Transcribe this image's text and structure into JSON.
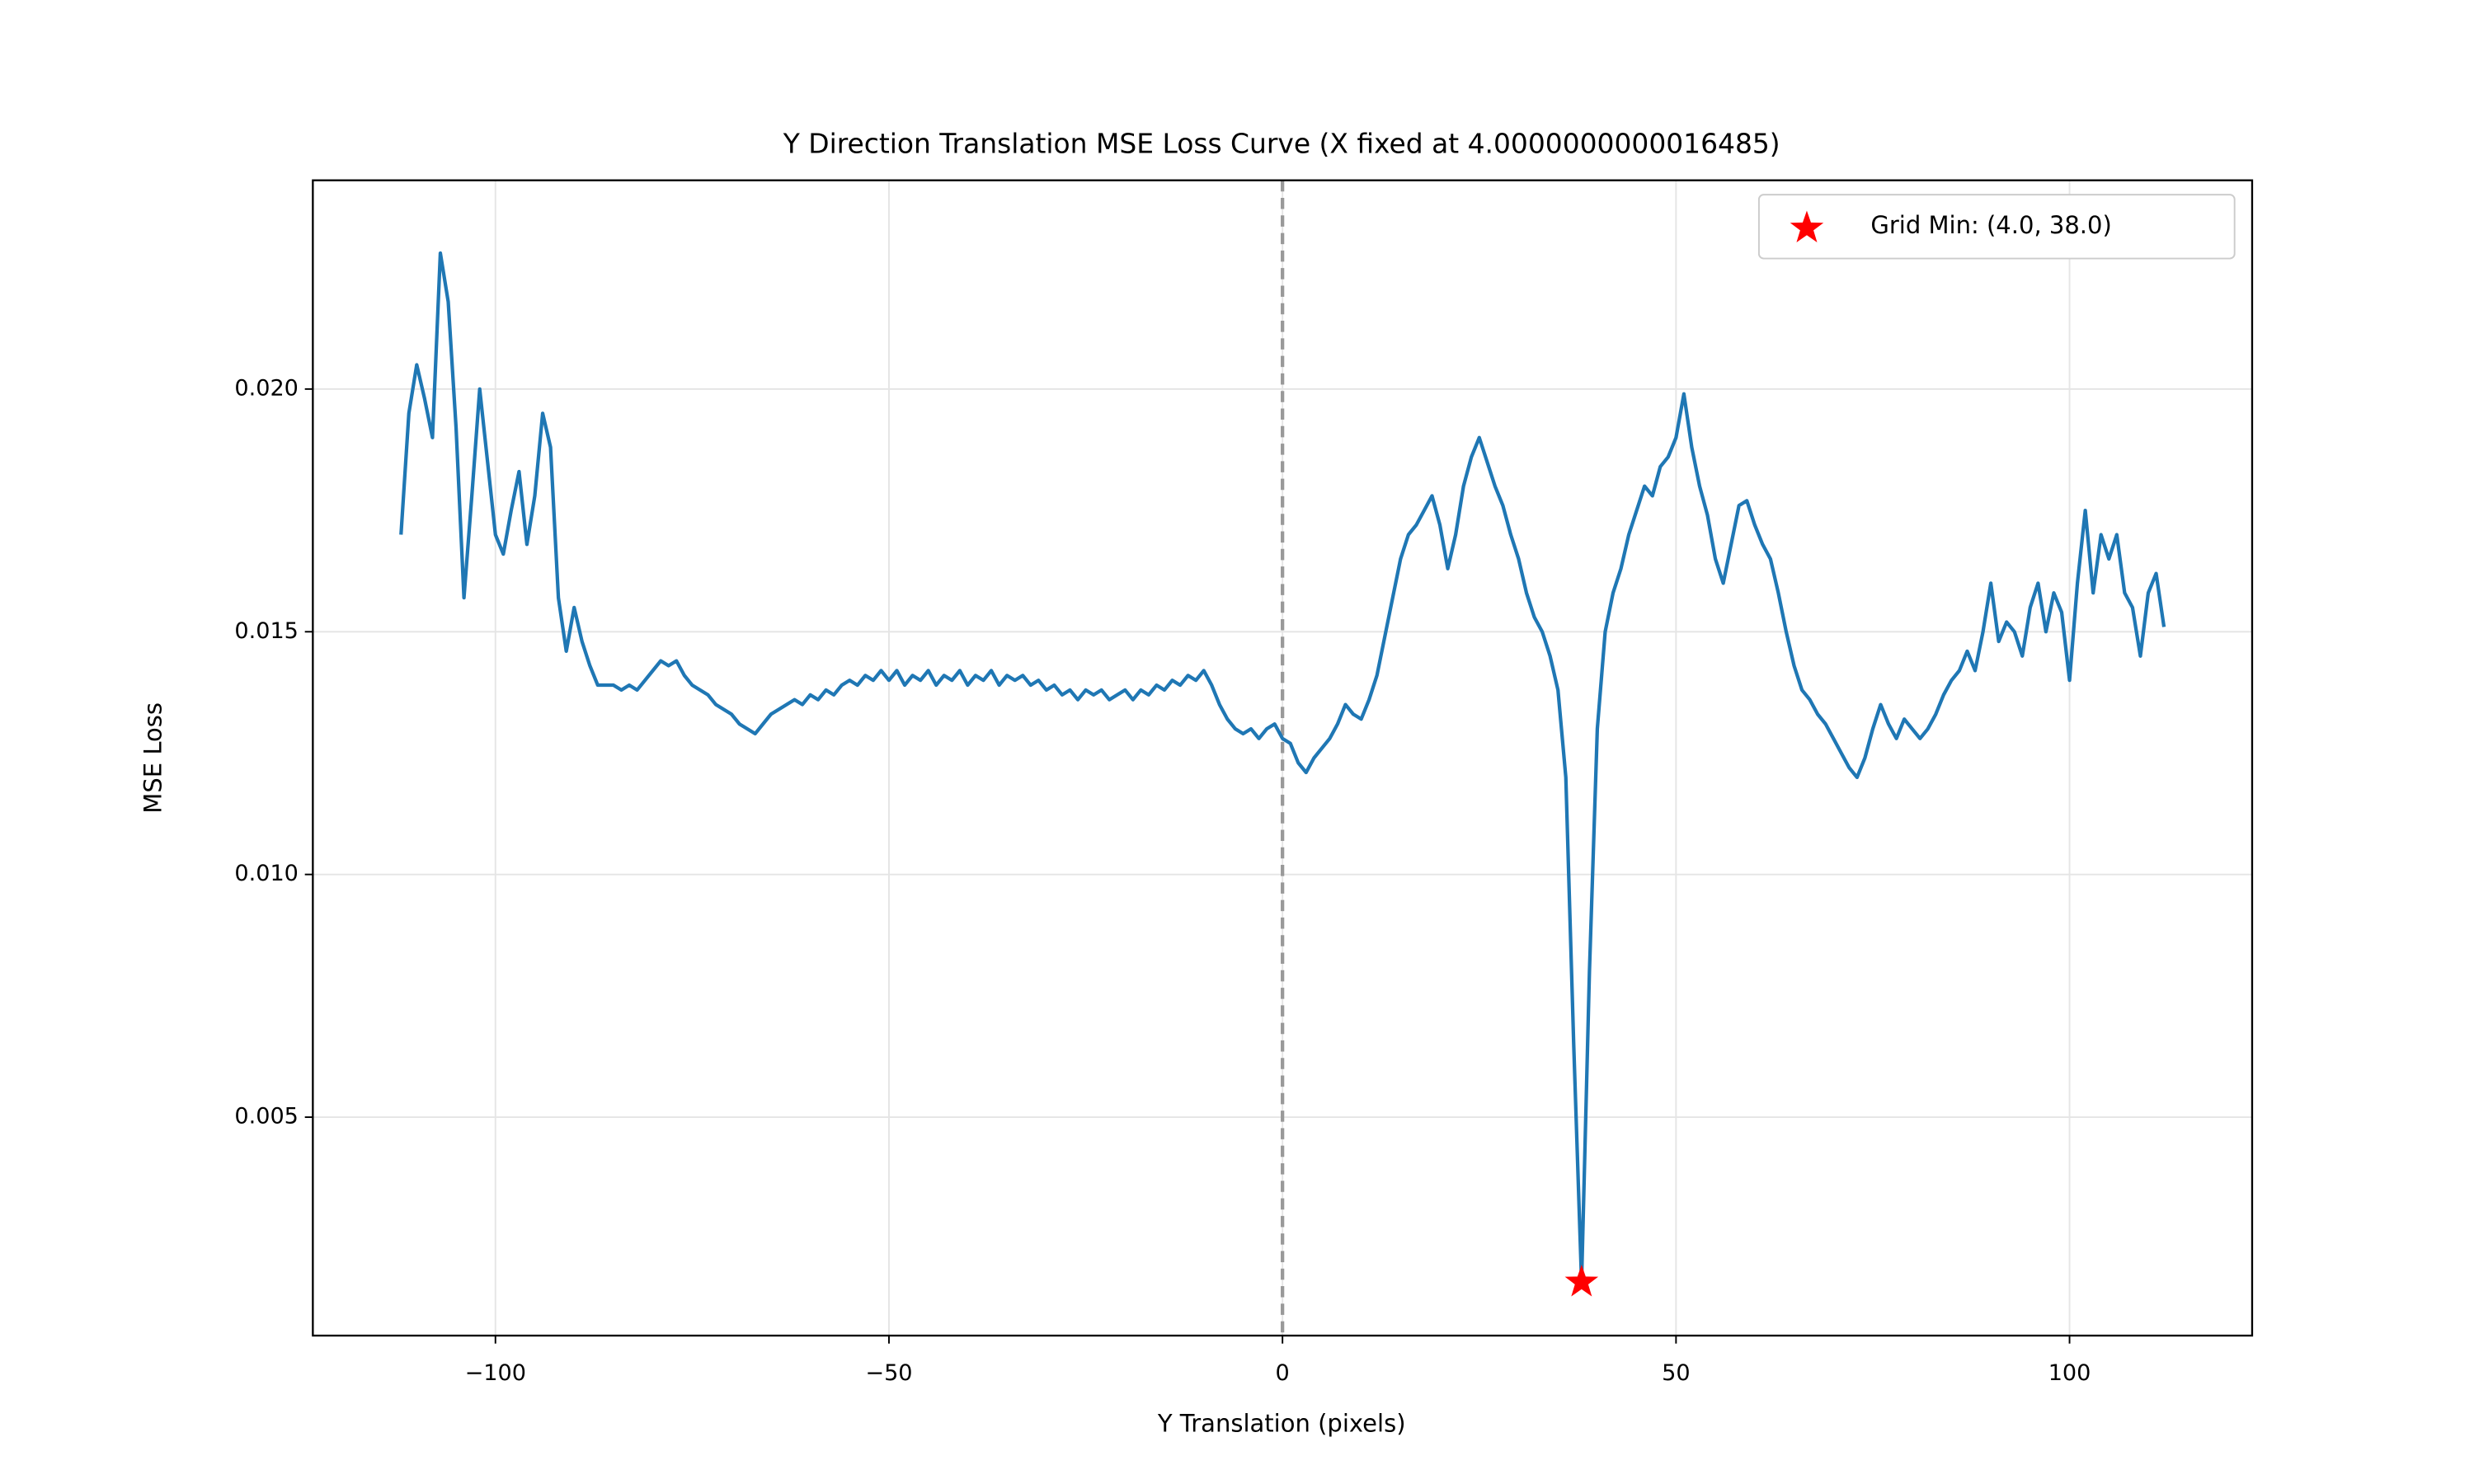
{
  "chart_data": {
    "type": "line",
    "title": "Y Direction Translation MSE Loss Curve (X fixed at 4.0000000000016485)",
    "xlabel": "Y Translation (pixels)",
    "ylabel": "MSE Loss",
    "x": [
      -112,
      -111,
      -110,
      -109,
      -108,
      -107,
      -106,
      -105,
      -104,
      -103,
      -102,
      -101,
      -100,
      -99,
      -98,
      -97,
      -96,
      -95,
      -94,
      -93,
      -92,
      -91,
      -90,
      -89,
      -88,
      -87,
      -86,
      -85,
      -84,
      -83,
      -82,
      -81,
      -80,
      -79,
      -78,
      -77,
      -76,
      -75,
      -74,
      -73,
      -72,
      -71,
      -70,
      -69,
      -68,
      -67,
      -66,
      -65,
      -64,
      -63,
      -62,
      -61,
      -60,
      -59,
      -58,
      -57,
      -56,
      -55,
      -54,
      -53,
      -52,
      -51,
      -50,
      -49,
      -48,
      -47,
      -46,
      -45,
      -44,
      -43,
      -42,
      -41,
      -40,
      -39,
      -38,
      -37,
      -36,
      -35,
      -34,
      -33,
      -32,
      -31,
      -30,
      -29,
      -28,
      -27,
      -26,
      -25,
      -24,
      -23,
      -22,
      -21,
      -20,
      -19,
      -18,
      -17,
      -16,
      -15,
      -14,
      -13,
      -12,
      -11,
      -10,
      -9,
      -8,
      -7,
      -6,
      -5,
      -4,
      -3,
      -2,
      -1,
      0,
      1,
      2,
      3,
      4,
      5,
      6,
      7,
      8,
      9,
      10,
      11,
      12,
      13,
      14,
      15,
      16,
      17,
      18,
      19,
      20,
      21,
      22,
      23,
      24,
      25,
      26,
      27,
      28,
      29,
      30,
      31,
      32,
      33,
      34,
      35,
      36,
      37,
      38,
      39,
      40,
      41,
      42,
      43,
      44,
      45,
      46,
      47,
      48,
      49,
      50,
      51,
      52,
      53,
      54,
      55,
      56,
      57,
      58,
      59,
      60,
      61,
      62,
      63,
      64,
      65,
      66,
      67,
      68,
      69,
      70,
      71,
      72,
      73,
      74,
      75,
      76,
      77,
      78,
      79,
      80,
      81,
      82,
      83,
      84,
      85,
      86,
      87,
      88,
      89,
      90,
      91,
      92,
      93,
      94,
      95,
      96,
      97,
      98,
      99,
      100,
      101,
      102,
      103,
      104,
      105,
      106,
      107,
      108,
      109,
      110,
      111,
      112
    ],
    "series": [
      {
        "color": "#1f77b4",
        "values": [
          0.017,
          0.0195,
          0.0205,
          0.0198,
          0.019,
          0.0228,
          0.0218,
          0.0192,
          0.0157,
          0.0178,
          0.02,
          0.0185,
          0.017,
          0.0166,
          0.0175,
          0.0183,
          0.0168,
          0.0178,
          0.0195,
          0.0188,
          0.0157,
          0.0146,
          0.0155,
          0.0148,
          0.0143,
          0.0139,
          0.0139,
          0.0139,
          0.0138,
          0.0139,
          0.0138,
          0.014,
          0.0142,
          0.0144,
          0.0143,
          0.0144,
          0.0141,
          0.0139,
          0.0138,
          0.0137,
          0.0135,
          0.0134,
          0.0133,
          0.0131,
          0.013,
          0.0129,
          0.0131,
          0.0133,
          0.0134,
          0.0135,
          0.0136,
          0.0135,
          0.0137,
          0.0136,
          0.0138,
          0.0137,
          0.0139,
          0.014,
          0.0139,
          0.0141,
          0.014,
          0.0142,
          0.014,
          0.0142,
          0.0139,
          0.0141,
          0.014,
          0.0142,
          0.0139,
          0.0141,
          0.014,
          0.0142,
          0.0139,
          0.0141,
          0.014,
          0.0142,
          0.0139,
          0.0141,
          0.014,
          0.0141,
          0.0139,
          0.014,
          0.0138,
          0.0139,
          0.0137,
          0.0138,
          0.0136,
          0.0138,
          0.0137,
          0.0138,
          0.0136,
          0.0137,
          0.0138,
          0.0136,
          0.0138,
          0.0137,
          0.0139,
          0.0138,
          0.014,
          0.0139,
          0.0141,
          0.014,
          0.0142,
          0.0139,
          0.0135,
          0.0132,
          0.013,
          0.0129,
          0.013,
          0.0128,
          0.013,
          0.0131,
          0.0128,
          0.0127,
          0.0123,
          0.0121,
          0.0124,
          0.0126,
          0.0128,
          0.0131,
          0.0135,
          0.0133,
          0.0132,
          0.0136,
          0.0141,
          0.0149,
          0.0157,
          0.0165,
          0.017,
          0.0172,
          0.0175,
          0.0178,
          0.0172,
          0.0163,
          0.017,
          0.018,
          0.0186,
          0.019,
          0.0185,
          0.018,
          0.0176,
          0.017,
          0.0165,
          0.0158,
          0.0153,
          0.015,
          0.0145,
          0.0138,
          0.012,
          0.0065,
          0.0016,
          0.008,
          0.013,
          0.015,
          0.0158,
          0.0163,
          0.017,
          0.0175,
          0.018,
          0.0178,
          0.0184,
          0.0186,
          0.019,
          0.0199,
          0.0188,
          0.018,
          0.0174,
          0.0165,
          0.016,
          0.0168,
          0.0176,
          0.0177,
          0.0172,
          0.0168,
          0.0165,
          0.0158,
          0.015,
          0.0143,
          0.0138,
          0.0136,
          0.0133,
          0.0131,
          0.0128,
          0.0125,
          0.0122,
          0.012,
          0.0124,
          0.013,
          0.0135,
          0.0131,
          0.0128,
          0.0132,
          0.013,
          0.0128,
          0.013,
          0.0133,
          0.0137,
          0.014,
          0.0142,
          0.0146,
          0.0142,
          0.015,
          0.016,
          0.0148,
          0.0152,
          0.015,
          0.0145,
          0.0155,
          0.016,
          0.015,
          0.0158,
          0.0154,
          0.014,
          0.016,
          0.0175,
          0.0158,
          0.017,
          0.0165,
          0.017,
          0.0158,
          0.0155,
          0.0145,
          0.0158,
          0.0162,
          0.0151
        ]
      }
    ],
    "marker": {
      "name": "Grid Min: (4.0, 38.0)",
      "x": 38,
      "y": 0.0016,
      "color": "#ff0000"
    },
    "vline": {
      "x": 0,
      "color": "#999999"
    },
    "xlim": [
      -123.2,
      123.2
    ],
    "ylim": [
      0.0005,
      0.0243
    ],
    "xticks": [
      {
        "value": -100,
        "label": "−100"
      },
      {
        "value": -50,
        "label": "−50"
      },
      0,
      50,
      100
    ],
    "yticks": [
      0.005,
      {
        "value": 0.01,
        "label": "0.010"
      },
      0.015,
      {
        "value": 0.02,
        "label": "0.020"
      }
    ],
    "grid": true,
    "legend": "upper right"
  }
}
